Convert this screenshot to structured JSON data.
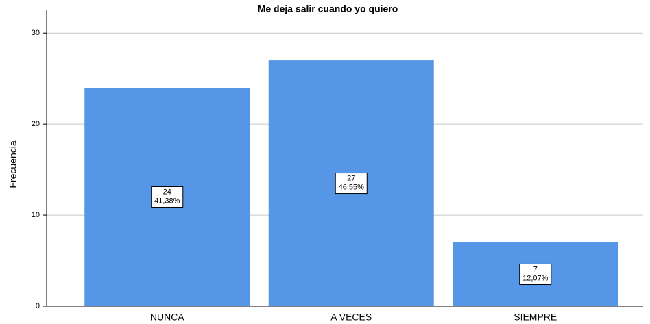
{
  "chart_data": {
    "type": "bar",
    "title": "Me deja salir cuando yo quiero",
    "y_label": "Frecuencia",
    "categories": [
      "NUNCA",
      "A VECES",
      "SIEMPRE"
    ],
    "values": [
      24,
      27,
      7
    ],
    "percents": [
      41.38,
      46.55,
      12.07
    ],
    "percent_labels": [
      "41,38%",
      "46,55%",
      "12,07%"
    ],
    "color": "#5596e6",
    "ylim": [
      0,
      32.5
    ],
    "yticks": [
      0,
      10,
      20,
      30
    ],
    "grid": true
  }
}
